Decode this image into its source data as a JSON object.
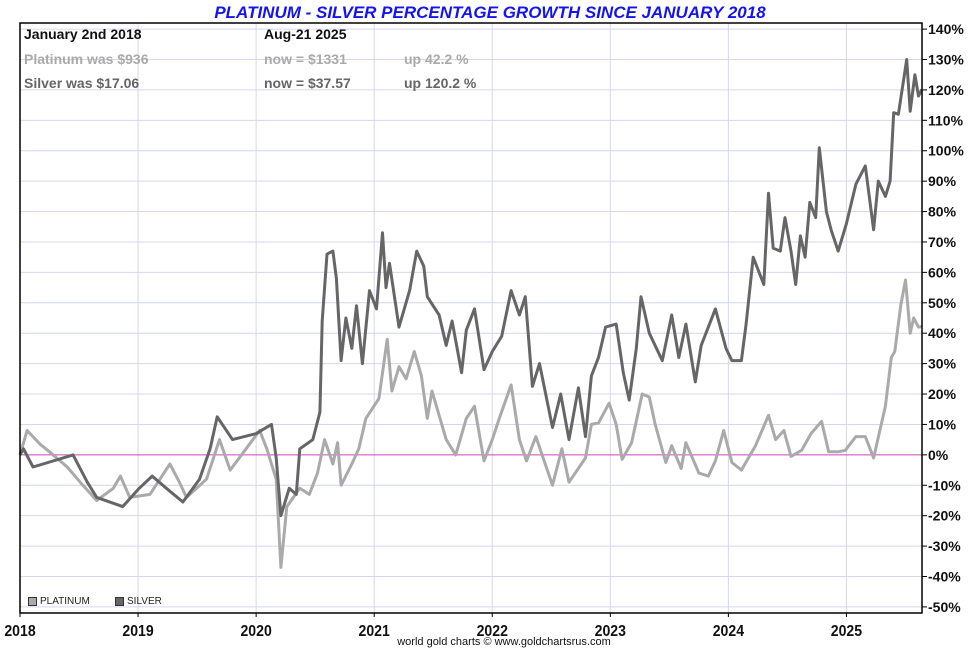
{
  "header": {
    "title": "PLATINUM - SILVER PERCENTAGE GROWTH SINCE JANUARY 2018",
    "start_date": "January 2nd 2018",
    "end_date": "Aug-21  2025",
    "platinum_was": "Platinum was $936",
    "platinum_now": "now = $1331",
    "platinum_up": "up 42.2 %",
    "silver_was": "Silver was $17.06",
    "silver_now": "now = $37.57",
    "silver_up": "up 120.2 %"
  },
  "footer": "world gold charts © www.goldchartsrus.com",
  "colors": {
    "title": "#1414f0",
    "platinum": "#aaaaaa",
    "silver": "#666666",
    "grid": "#d6d6f0",
    "zero_line": "#d040c0"
  },
  "chart_data": {
    "type": "line",
    "title": "PLATINUM - SILVER PERCENTAGE GROWTH SINCE JANUARY 2018",
    "xlabel": "",
    "ylabel": "",
    "xlim": [
      2018,
      2025.64
    ],
    "ylim": [
      -52,
      142
    ],
    "grid": true,
    "legend_position": "bottom-left",
    "x_ticks": [
      "2018",
      "2019",
      "2020",
      "2021",
      "2022",
      "2023",
      "2024",
      "2025"
    ],
    "y_ticks": [
      "140%",
      "130%",
      "120%",
      "110%",
      "100%",
      "90%",
      "80%",
      "70%",
      "60%",
      "50%",
      "40%",
      "30%",
      "20%",
      "10%",
      "0%",
      "-10%",
      "-20%",
      "-30%",
      "-40%",
      "-50%"
    ],
    "series": [
      {
        "name": "PLATINUM",
        "color": "#aaaaaa",
        "points": [
          [
            2018.0,
            0
          ],
          [
            2018.06,
            8
          ],
          [
            2018.17,
            3.5
          ],
          [
            2018.25,
            1
          ],
          [
            2018.4,
            -4
          ],
          [
            2018.51,
            -9
          ],
          [
            2018.65,
            -15
          ],
          [
            2018.79,
            -11
          ],
          [
            2018.85,
            -7
          ],
          [
            2018.93,
            -14
          ],
          [
            2019.1,
            -13
          ],
          [
            2019.27,
            -3
          ],
          [
            2019.35,
            -9
          ],
          [
            2019.41,
            -14
          ],
          [
            2019.58,
            -8
          ],
          [
            2019.69,
            5
          ],
          [
            2019.78,
            -5
          ],
          [
            2020.03,
            8
          ],
          [
            2020.09,
            2
          ],
          [
            2020.17,
            -8
          ],
          [
            2020.21,
            -37
          ],
          [
            2020.26,
            -17
          ],
          [
            2020.37,
            -11
          ],
          [
            2020.45,
            -13
          ],
          [
            2020.52,
            -6
          ],
          [
            2020.58,
            5
          ],
          [
            2020.65,
            -3
          ],
          [
            2020.69,
            4
          ],
          [
            2020.72,
            -10
          ],
          [
            2020.81,
            -3
          ],
          [
            2020.87,
            2
          ],
          [
            2020.93,
            12
          ],
          [
            2021.04,
            18.5
          ],
          [
            2021.11,
            38
          ],
          [
            2021.15,
            21
          ],
          [
            2021.21,
            29
          ],
          [
            2021.27,
            25
          ],
          [
            2021.34,
            34
          ],
          [
            2021.4,
            26
          ],
          [
            2021.45,
            12
          ],
          [
            2021.49,
            21
          ],
          [
            2021.61,
            5
          ],
          [
            2021.69,
            0
          ],
          [
            2021.78,
            12
          ],
          [
            2021.85,
            16
          ],
          [
            2021.93,
            -2
          ],
          [
            2022.0,
            5
          ],
          [
            2022.06,
            12
          ],
          [
            2022.16,
            23
          ],
          [
            2022.23,
            5
          ],
          [
            2022.29,
            -2
          ],
          [
            2022.37,
            6
          ],
          [
            2022.51,
            -10
          ],
          [
            2022.59,
            2
          ],
          [
            2022.65,
            -9
          ],
          [
            2022.79,
            -1
          ],
          [
            2022.84,
            10
          ],
          [
            2022.9,
            10.5
          ],
          [
            2022.99,
            17
          ],
          [
            2023.05,
            10
          ],
          [
            2023.1,
            -1.5
          ],
          [
            2023.18,
            4
          ],
          [
            2023.27,
            20
          ],
          [
            2023.33,
            19
          ],
          [
            2023.38,
            10
          ],
          [
            2023.47,
            -2.5
          ],
          [
            2023.52,
            3
          ],
          [
            2023.6,
            -4.5
          ],
          [
            2023.64,
            4
          ],
          [
            2023.75,
            -6
          ],
          [
            2023.83,
            -7
          ],
          [
            2023.89,
            -2
          ],
          [
            2023.96,
            8
          ],
          [
            2024.03,
            -2.5
          ],
          [
            2024.11,
            -5
          ],
          [
            2024.23,
            3
          ],
          [
            2024.34,
            13
          ],
          [
            2024.4,
            5
          ],
          [
            2024.47,
            8
          ],
          [
            2024.53,
            -0.5
          ],
          [
            2024.62,
            1.5
          ],
          [
            2024.7,
            7
          ],
          [
            2024.79,
            11
          ],
          [
            2024.85,
            1
          ],
          [
            2024.93,
            1
          ],
          [
            2024.99,
            1.5
          ],
          [
            2025.08,
            6
          ],
          [
            2025.16,
            6
          ],
          [
            2025.23,
            -1
          ],
          [
            2025.33,
            16
          ],
          [
            2025.38,
            32
          ],
          [
            2025.41,
            34
          ],
          [
            2025.46,
            49
          ],
          [
            2025.5,
            57.5
          ],
          [
            2025.54,
            40
          ],
          [
            2025.57,
            45
          ],
          [
            2025.61,
            42
          ],
          [
            2025.64,
            42.2
          ]
        ]
      },
      {
        "name": "SILVER",
        "color": "#666666",
        "points": [
          [
            2018.0,
            0
          ],
          [
            2018.03,
            2
          ],
          [
            2018.11,
            -4
          ],
          [
            2018.45,
            0
          ],
          [
            2018.57,
            -9
          ],
          [
            2018.65,
            -14
          ],
          [
            2018.87,
            -17
          ],
          [
            2019.01,
            -11
          ],
          [
            2019.12,
            -7
          ],
          [
            2019.24,
            -11
          ],
          [
            2019.38,
            -15.5
          ],
          [
            2019.52,
            -8
          ],
          [
            2019.61,
            2
          ],
          [
            2019.67,
            12.5
          ],
          [
            2019.8,
            5
          ],
          [
            2020.0,
            7
          ],
          [
            2020.13,
            10
          ],
          [
            2020.17,
            -1
          ],
          [
            2020.21,
            -20
          ],
          [
            2020.28,
            -11
          ],
          [
            2020.34,
            -13
          ],
          [
            2020.37,
            2
          ],
          [
            2020.48,
            5
          ],
          [
            2020.54,
            14
          ],
          [
            2020.56,
            44
          ],
          [
            2020.6,
            66
          ],
          [
            2020.65,
            67
          ],
          [
            2020.68,
            58
          ],
          [
            2020.72,
            31
          ],
          [
            2020.76,
            45
          ],
          [
            2020.81,
            35
          ],
          [
            2020.85,
            49
          ],
          [
            2020.9,
            30
          ],
          [
            2020.96,
            54
          ],
          [
            2021.02,
            48
          ],
          [
            2021.07,
            73
          ],
          [
            2021.1,
            55
          ],
          [
            2021.13,
            63
          ],
          [
            2021.21,
            42
          ],
          [
            2021.3,
            54
          ],
          [
            2021.36,
            67
          ],
          [
            2021.42,
            62
          ],
          [
            2021.45,
            52
          ],
          [
            2021.55,
            46
          ],
          [
            2021.61,
            36
          ],
          [
            2021.66,
            44
          ],
          [
            2021.74,
            27
          ],
          [
            2021.78,
            41
          ],
          [
            2021.85,
            48
          ],
          [
            2021.93,
            28
          ],
          [
            2022.0,
            34
          ],
          [
            2022.08,
            39
          ],
          [
            2022.16,
            54
          ],
          [
            2022.23,
            46
          ],
          [
            2022.28,
            52
          ],
          [
            2022.34,
            22.5
          ],
          [
            2022.4,
            30
          ],
          [
            2022.51,
            9
          ],
          [
            2022.58,
            20
          ],
          [
            2022.65,
            5
          ],
          [
            2022.73,
            22
          ],
          [
            2022.79,
            6
          ],
          [
            2022.84,
            26
          ],
          [
            2022.9,
            32
          ],
          [
            2022.96,
            42
          ],
          [
            2023.05,
            43
          ],
          [
            2023.11,
            27
          ],
          [
            2023.16,
            18
          ],
          [
            2023.22,
            35
          ],
          [
            2023.26,
            52
          ],
          [
            2023.33,
            40
          ],
          [
            2023.44,
            31
          ],
          [
            2023.52,
            46
          ],
          [
            2023.58,
            32
          ],
          [
            2023.64,
            43
          ],
          [
            2023.72,
            24
          ],
          [
            2023.77,
            36
          ],
          [
            2023.89,
            48
          ],
          [
            2023.98,
            35
          ],
          [
            2024.03,
            31
          ],
          [
            2024.11,
            31
          ],
          [
            2024.15,
            43
          ],
          [
            2024.21,
            65
          ],
          [
            2024.3,
            56
          ],
          [
            2024.34,
            86
          ],
          [
            2024.38,
            68
          ],
          [
            2024.44,
            67
          ],
          [
            2024.48,
            78
          ],
          [
            2024.53,
            67
          ],
          [
            2024.57,
            56
          ],
          [
            2024.61,
            72
          ],
          [
            2024.65,
            65
          ],
          [
            2024.69,
            83
          ],
          [
            2024.74,
            78
          ],
          [
            2024.77,
            101
          ],
          [
            2024.83,
            80
          ],
          [
            2024.87,
            74
          ],
          [
            2024.93,
            67
          ],
          [
            2025.0,
            76
          ],
          [
            2025.08,
            89
          ],
          [
            2025.16,
            95
          ],
          [
            2025.23,
            74
          ],
          [
            2025.27,
            90
          ],
          [
            2025.33,
            85
          ],
          [
            2025.37,
            90
          ],
          [
            2025.4,
            112.5
          ],
          [
            2025.44,
            112
          ],
          [
            2025.51,
            130
          ],
          [
            2025.54,
            113
          ],
          [
            2025.58,
            125
          ],
          [
            2025.61,
            118
          ],
          [
            2025.64,
            120.2
          ]
        ]
      }
    ]
  }
}
